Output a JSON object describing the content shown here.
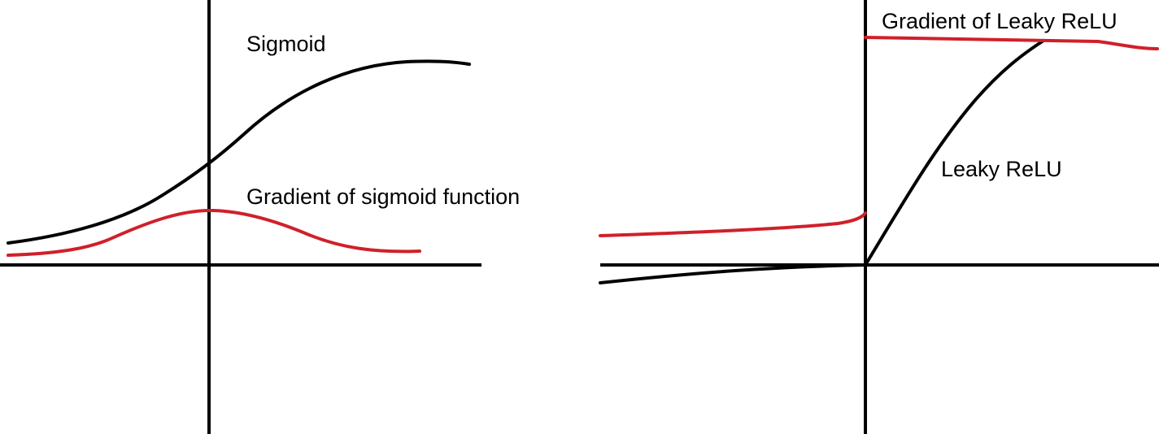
{
  "colors": {
    "axis": "#000000",
    "function_curve": "#000000",
    "gradient_curve": "#d0202a",
    "background": "#ffffff"
  },
  "left_panel": {
    "function_label": "Sigmoid",
    "gradient_label": "Gradient of sigmoid function"
  },
  "right_panel": {
    "function_label": "Leaky ReLU",
    "gradient_label": "Gradient of Leaky ReLU"
  }
}
